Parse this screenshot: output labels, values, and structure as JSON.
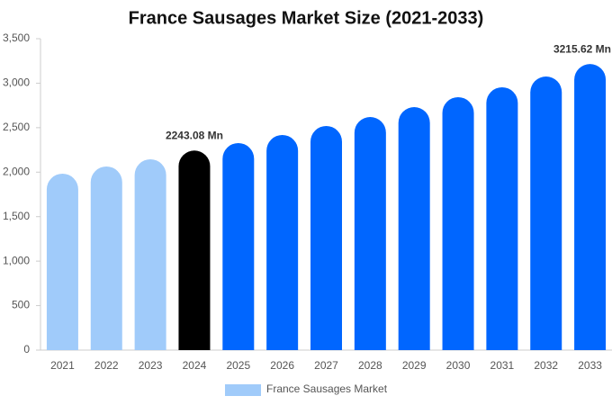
{
  "chart_data": {
    "type": "bar",
    "title": "France Sausages Market Size (2021-2033)",
    "categories": [
      "2021",
      "2022",
      "2023",
      "2024",
      "2025",
      "2026",
      "2027",
      "2028",
      "2029",
      "2030",
      "2031",
      "2032",
      "2033"
    ],
    "series": [
      {
        "name": "France Sausages Market",
        "color": "#a0cbfa",
        "colors": [
          "#a0cbfa",
          "#a0cbfa",
          "#a0cbfa",
          "#000000",
          "#0066ff",
          "#0066ff",
          "#0066ff",
          "#0066ff",
          "#0066ff",
          "#0066ff",
          "#0066ff",
          "#0066ff",
          "#0066ff"
        ],
        "values": [
          1983,
          2064,
          2145,
          2243.08,
          2327,
          2418,
          2519,
          2620,
          2731,
          2843,
          2954,
          3075,
          3215.62
        ],
        "value_labels": [
          null,
          null,
          null,
          "2243.08 Mn",
          null,
          null,
          null,
          null,
          null,
          null,
          null,
          null,
          "3215.62 Mn"
        ]
      }
    ],
    "ylim": [
      0,
      3500
    ],
    "yticks": [
      0,
      500,
      {
        "value": 1000,
        "label": "1,000"
      },
      {
        "value": 1500,
        "label": "1,500"
      },
      {
        "value": 2000,
        "label": "2,000"
      },
      {
        "value": 2500,
        "label": "2,500"
      },
      {
        "value": 3000,
        "label": "3,000"
      },
      {
        "value": 3500,
        "label": "3,500"
      }
    ],
    "grid": false
  }
}
